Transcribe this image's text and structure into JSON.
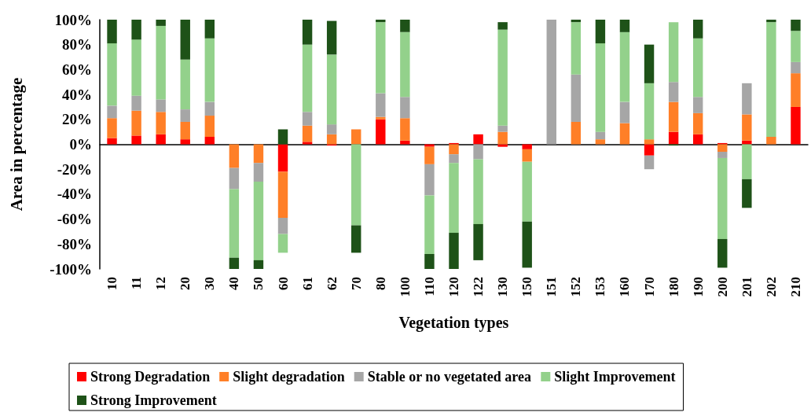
{
  "chart_data": {
    "type": "bar",
    "stacked": true,
    "xlabel": "Vegetation types",
    "ylabel": "Area in percentage",
    "categories": [
      "10",
      "11",
      "12",
      "20",
      "30",
      "40",
      "50",
      "60",
      "61",
      "62",
      "70",
      "80",
      "100",
      "110",
      "120",
      "122",
      "130",
      "150",
      "151",
      "152",
      "153",
      "160",
      "170",
      "180",
      "190",
      "200",
      "201",
      "202",
      "210"
    ],
    "series": [
      {
        "name": "Strong Degradation",
        "color": "#ff0000",
        "values": [
          5,
          7,
          8,
          4,
          6,
          null,
          null,
          -22,
          2,
          -1,
          null,
          20,
          3,
          -2,
          1,
          8,
          -2,
          -4,
          null,
          null,
          null,
          null,
          -9,
          10,
          8,
          1,
          3,
          null,
          30
        ]
      },
      {
        "name": "Slight degradation",
        "color": "#ff7f27",
        "values": [
          16,
          20,
          18,
          14,
          17,
          -19,
          -15,
          -37,
          13,
          8,
          12,
          2,
          18,
          -14,
          -8,
          null,
          10,
          -10,
          null,
          18,
          4,
          17,
          4,
          24,
          17,
          -6,
          21,
          6,
          27
        ]
      },
      {
        "name": "Stable or no vegetated area",
        "color": "#a6a6a6",
        "values": [
          10,
          12,
          10,
          10,
          11,
          -17,
          -15,
          -13,
          11,
          8,
          null,
          19,
          17,
          -25,
          -7,
          -12,
          5,
          null,
          100,
          38,
          6,
          17,
          -11,
          16,
          13,
          -5,
          25,
          null,
          9
        ]
      },
      {
        "name": "Slight Improvement",
        "color": "#93d18b",
        "values": [
          50,
          45,
          59,
          40,
          51,
          -55,
          -63,
          -15,
          54,
          56,
          -65,
          57,
          52,
          -47,
          -56,
          -52,
          77,
          -48,
          null,
          42,
          71,
          56,
          45,
          48,
          47,
          -65,
          -28,
          92,
          25
        ]
      },
      {
        "name": "Strong Improvement",
        "color": "#1e5218",
        "values": [
          19,
          16,
          5,
          32,
          15,
          -9,
          -7,
          12,
          20,
          27,
          -22,
          2,
          10,
          -12,
          -29,
          -29,
          6,
          -37,
          null,
          2,
          19,
          10,
          31,
          -1,
          15,
          -23,
          -23,
          2,
          9
        ]
      }
    ],
    "ylim": [
      -100,
      100
    ],
    "yticks": [
      {
        "value": -100,
        "label": "-100%"
      },
      {
        "value": -80,
        "label": "-80%"
      },
      {
        "value": -60,
        "label": "-60%"
      },
      {
        "value": -40,
        "label": "-40%"
      },
      {
        "value": -20,
        "label": "-20%"
      },
      {
        "value": 0,
        "label": "0%"
      },
      {
        "value": 20,
        "label": "20%"
      },
      {
        "value": 40,
        "label": "40%"
      },
      {
        "value": 60,
        "label": "60%"
      },
      {
        "value": 80,
        "label": "80%"
      },
      {
        "value": 100,
        "label": "100%"
      }
    ],
    "legend": "bottom"
  }
}
